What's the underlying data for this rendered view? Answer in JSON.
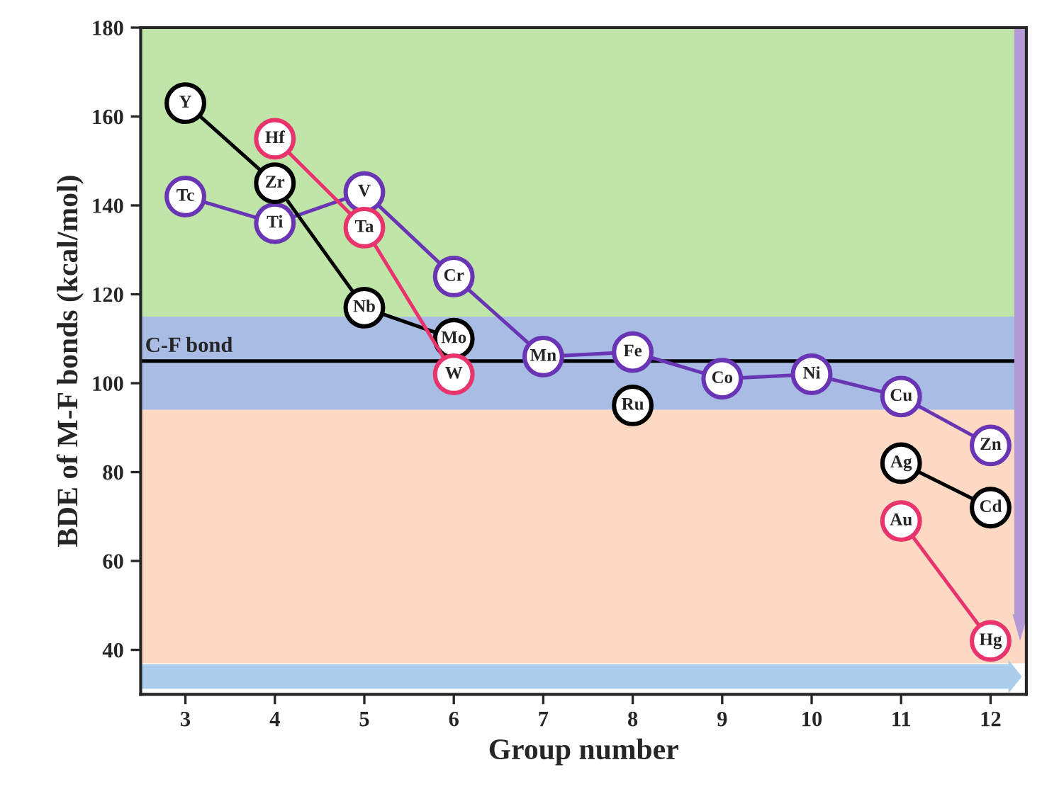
{
  "chart_data": {
    "type": "line",
    "xlabel": "Group number",
    "ylabel": "BDE of M-F bonds (kcal/mol)",
    "xlim": [
      2.5,
      12.4
    ],
    "xticks": [
      3,
      4,
      5,
      6,
      7,
      8,
      9,
      10,
      11,
      12
    ],
    "ylim": [
      30,
      180
    ],
    "yticks": [
      40,
      60,
      80,
      100,
      120,
      140,
      160,
      180
    ],
    "grid": false,
    "legend": false,
    "marker": "circle",
    "line_style": "solid",
    "series": [
      {
        "color": "#6a35b5",
        "x": [
          3,
          4,
          5,
          6,
          7,
          8,
          9,
          10,
          11,
          12
        ],
        "values": [
          142,
          136,
          143,
          124,
          106,
          107,
          101,
          102,
          97,
          86
        ]
      },
      {
        "color": "#000000",
        "x": [
          3,
          4,
          5,
          6,
          7,
          8,
          9,
          10,
          11,
          12
        ],
        "values": [
          163,
          145,
          117,
          110,
          null,
          95,
          null,
          null,
          82,
          72
        ]
      },
      {
        "color": "#e8336d",
        "x": [
          4,
          5,
          6,
          7,
          8,
          9,
          10,
          11,
          12
        ],
        "values": [
          155,
          135,
          102,
          null,
          null,
          null,
          null,
          69,
          42
        ]
      }
    ],
    "bands": [
      {
        "axis": "y",
        "from": 115,
        "to": 180,
        "color": "#bfe6a8"
      },
      {
        "axis": "y",
        "from": 94,
        "to": 115,
        "color": "#a9bde4"
      },
      {
        "axis": "y",
        "from": 37,
        "to": 94,
        "color": "#fcd9c2"
      }
    ],
    "ref_lines": [
      {
        "axis": "y",
        "value": 105,
        "label": "C-F bond",
        "color": "#000000"
      }
    ],
    "annotations": [
      {
        "text": "Tc",
        "x": 3,
        "y": 142
      },
      {
        "text": "Ti",
        "x": 4,
        "y": 136
      },
      {
        "text": "V",
        "x": 5,
        "y": 143
      },
      {
        "text": "Cr",
        "x": 6,
        "y": 124
      },
      {
        "text": "Mn",
        "x": 7,
        "y": 106
      },
      {
        "text": "Fe",
        "x": 8,
        "y": 107
      },
      {
        "text": "Co",
        "x": 9,
        "y": 101
      },
      {
        "text": "Ni",
        "x": 10,
        "y": 102
      },
      {
        "text": "Cu",
        "x": 11,
        "y": 97
      },
      {
        "text": "Zn",
        "x": 12,
        "y": 86
      },
      {
        "text": "Y",
        "x": 3,
        "y": 163
      },
      {
        "text": "Zr",
        "x": 4,
        "y": 145
      },
      {
        "text": "Nb",
        "x": 5,
        "y": 117
      },
      {
        "text": "Mo",
        "x": 6,
        "y": 110
      },
      {
        "text": "Ru",
        "x": 8,
        "y": 95
      },
      {
        "text": "Ag",
        "x": 11,
        "y": 82
      },
      {
        "text": "Cd",
        "x": 12,
        "y": 72
      },
      {
        "text": "Hf",
        "x": 4,
        "y": 155
      },
      {
        "text": "Ta",
        "x": 5,
        "y": 135
      },
      {
        "text": "W",
        "x": 6,
        "y": 102
      },
      {
        "text": "Au",
        "x": 11,
        "y": 69
      },
      {
        "text": "Hg",
        "x": 12,
        "y": 42
      }
    ]
  }
}
